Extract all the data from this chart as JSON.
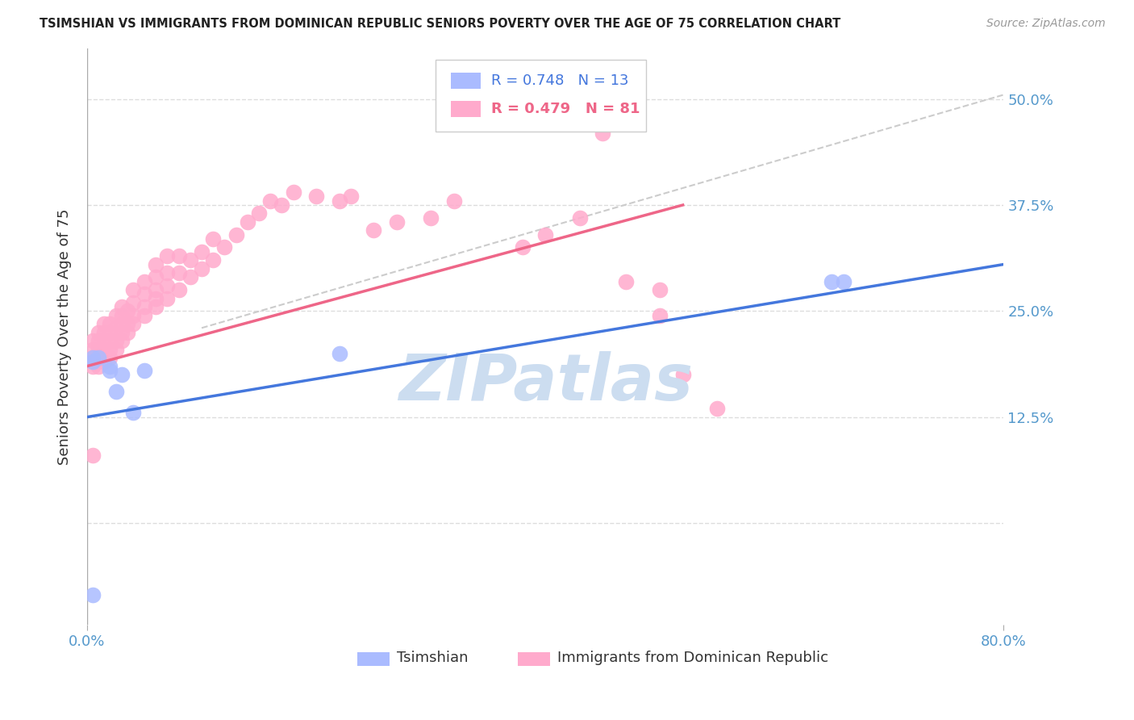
{
  "title": "TSIMSHIAN VS IMMIGRANTS FROM DOMINICAN REPUBLIC SENIORS POVERTY OVER THE AGE OF 75 CORRELATION CHART",
  "source": "Source: ZipAtlas.com",
  "ylabel": "Seniors Poverty Over the Age of 75",
  "xlim": [
    0.0,
    0.8
  ],
  "ylim": [
    -0.12,
    0.56
  ],
  "ytick_positions": [
    0.0,
    0.125,
    0.25,
    0.375,
    0.5
  ],
  "ytick_labels": [
    "",
    "12.5%",
    "25.0%",
    "37.5%",
    "50.0%"
  ],
  "blue_color": "#aabbff",
  "pink_color": "#ffaacc",
  "trend_blue": "#4477dd",
  "trend_pink": "#ee6688",
  "ref_line_color": "#cccccc",
  "watermark": "ZIPatlas",
  "watermark_color": "#ccddf0",
  "blue_scatter_x": [
    0.005,
    0.005,
    0.01,
    0.02,
    0.02,
    0.025,
    0.03,
    0.04,
    0.05,
    0.22,
    0.65,
    0.66,
    0.005
  ],
  "blue_scatter_y": [
    0.195,
    0.19,
    0.195,
    0.185,
    0.18,
    0.155,
    0.175,
    0.13,
    0.18,
    0.2,
    0.285,
    0.285,
    -0.085
  ],
  "pink_scatter_x": [
    0.005,
    0.005,
    0.005,
    0.005,
    0.01,
    0.01,
    0.01,
    0.01,
    0.01,
    0.015,
    0.015,
    0.015,
    0.015,
    0.015,
    0.02,
    0.02,
    0.02,
    0.02,
    0.02,
    0.025,
    0.025,
    0.025,
    0.025,
    0.03,
    0.03,
    0.03,
    0.03,
    0.03,
    0.035,
    0.035,
    0.035,
    0.04,
    0.04,
    0.04,
    0.04,
    0.05,
    0.05,
    0.05,
    0.05,
    0.06,
    0.06,
    0.06,
    0.06,
    0.06,
    0.07,
    0.07,
    0.07,
    0.07,
    0.08,
    0.08,
    0.08,
    0.09,
    0.09,
    0.1,
    0.1,
    0.11,
    0.11,
    0.12,
    0.13,
    0.14,
    0.15,
    0.16,
    0.17,
    0.18,
    0.2,
    0.22,
    0.23,
    0.25,
    0.27,
    0.3,
    0.32,
    0.38,
    0.4,
    0.43,
    0.45,
    0.47,
    0.5,
    0.5,
    0.52,
    0.55,
    0.005
  ],
  "pink_scatter_y": [
    0.185,
    0.195,
    0.205,
    0.215,
    0.185,
    0.195,
    0.205,
    0.215,
    0.225,
    0.19,
    0.2,
    0.21,
    0.225,
    0.235,
    0.195,
    0.205,
    0.215,
    0.225,
    0.235,
    0.205,
    0.215,
    0.23,
    0.245,
    0.215,
    0.225,
    0.235,
    0.245,
    0.255,
    0.225,
    0.235,
    0.25,
    0.235,
    0.245,
    0.26,
    0.275,
    0.245,
    0.255,
    0.27,
    0.285,
    0.255,
    0.265,
    0.275,
    0.29,
    0.305,
    0.265,
    0.28,
    0.295,
    0.315,
    0.275,
    0.295,
    0.315,
    0.29,
    0.31,
    0.3,
    0.32,
    0.31,
    0.335,
    0.325,
    0.34,
    0.355,
    0.365,
    0.38,
    0.375,
    0.39,
    0.385,
    0.38,
    0.385,
    0.345,
    0.355,
    0.36,
    0.38,
    0.325,
    0.34,
    0.36,
    0.46,
    0.285,
    0.245,
    0.275,
    0.175,
    0.135,
    0.08
  ]
}
